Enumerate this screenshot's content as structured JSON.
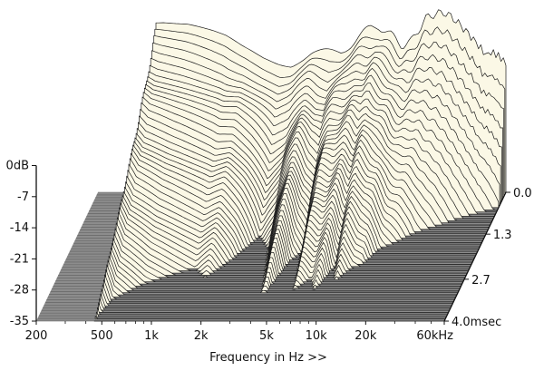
{
  "chart_data": {
    "type": "area",
    "variant": "cumulative spectral decay (waterfall)",
    "xlabel": "Frequency in Hz >>",
    "x_scale": "log",
    "xlim_hz": [
      200,
      60000
    ],
    "x_ticks": [
      {
        "value": 200,
        "label": "200"
      },
      {
        "value": 500,
        "label": "500"
      },
      {
        "value": 1000,
        "label": "1k"
      },
      {
        "value": 2000,
        "label": "2k"
      },
      {
        "value": 5000,
        "label": "5k"
      },
      {
        "value": 10000,
        "label": "10k"
      },
      {
        "value": 20000,
        "label": "20k"
      },
      {
        "value": 60000,
        "label": "60kHz"
      }
    ],
    "ylim_db": [
      -35,
      0
    ],
    "y_ticks": [
      {
        "value": 0,
        "label": "0dB"
      },
      {
        "value": -7,
        "label": "-7"
      },
      {
        "value": -14,
        "label": "-14"
      },
      {
        "value": -21,
        "label": "-21"
      },
      {
        "value": -28,
        "label": "-28"
      },
      {
        "value": -35,
        "label": "-35"
      }
    ],
    "zlim_ms": [
      0,
      4.0
    ],
    "z_ticks": [
      {
        "value": 0,
        "label": "0.0"
      },
      {
        "value": 1.3,
        "label": "1.3"
      },
      {
        "value": 2.7,
        "label": "2.7"
      },
      {
        "value": 4.0,
        "label": "4.0msec"
      }
    ],
    "slice_count": 60,
    "initial_response": {
      "freq_hz": [
        450,
        500,
        600,
        700,
        800,
        1000,
        1200,
        1500,
        2000,
        2500,
        3000,
        3500,
        4000,
        5000,
        6000,
        7000,
        8000,
        9000,
        10000,
        12000,
        14000,
        16000,
        18000,
        20000,
        22000,
        25000,
        28000,
        30000,
        35000,
        40000,
        45000,
        50000,
        55000,
        60000
      ],
      "level_db": [
        2.5,
        2.5,
        2.2,
        2.0,
        1.5,
        0.5,
        -0.5,
        -2.5,
        -4.5,
        -5.5,
        -6.0,
        -5.0,
        -4.0,
        -3.5,
        -3.2,
        -1.5,
        0.5,
        2.0,
        2.5,
        0.5,
        -2.0,
        -1.0,
        2.0,
        4.5,
        5.0,
        5.5,
        4.5,
        3.5,
        1.0,
        -1.5,
        -4.0,
        -3.5,
        -4.5,
        -6.0
      ]
    },
    "decay_profile": {
      "freq_hz": [
        450,
        500,
        700,
        1000,
        1300,
        1600,
        2000,
        2600,
        3200,
        4000,
        4600,
        5200,
        6000,
        7000,
        8000,
        9000,
        10000,
        11500,
        13000,
        15000,
        18000,
        22000,
        28000,
        35000,
        45000,
        60000
      ],
      "ms_to_minus_35db": [
        4.0,
        3.4,
        2.9,
        2.6,
        2.4,
        2.7,
        2.2,
        1.4,
        1.8,
        3.3,
        2.2,
        1.9,
        3.1,
        2.7,
        3.1,
        2.3,
        2.8,
        2.4,
        2.3,
        1.8,
        1.6,
        1.3,
        1.1,
        0.9,
        0.7,
        0.5
      ]
    }
  }
}
